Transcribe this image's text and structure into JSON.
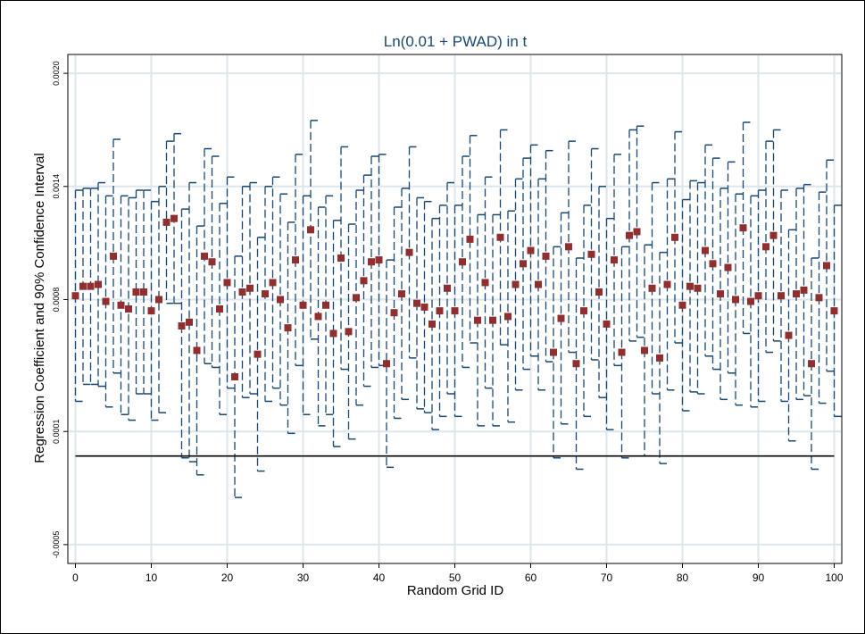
{
  "chart_data": {
    "type": "scatter",
    "title": "Ln(0.01 + PWAD) in t",
    "xlabel": "Random Grid ID",
    "ylabel": "Regression Coefficient and 90% Confidence Interval",
    "xlim": [
      -1,
      101
    ],
    "ylim": [
      -0.0006,
      0.0021
    ],
    "xticks": [
      0,
      10,
      20,
      30,
      40,
      50,
      60,
      70,
      80,
      90,
      100
    ],
    "xtick_labels": [
      "0",
      "10",
      "20",
      "30",
      "40",
      "50",
      "60",
      "70",
      "80",
      "90",
      "100"
    ],
    "yticks": [
      -0.0005,
      0.0001,
      0.0008,
      0.0014,
      0.002
    ],
    "ytick_labels": [
      "-0.0005",
      "0.0001",
      "0.0008",
      "0.0014",
      "0.0020"
    ],
    "grid": true,
    "reference_line_y": -3e-05,
    "colors": {
      "point": "#8f2f2f",
      "ci": "#1a476f",
      "grid": "#dde6ea",
      "title": "#1a476f",
      "reference": "#000000"
    },
    "series": [
      {
        "type": "point",
        "x": [
          0,
          1,
          2,
          3,
          4,
          5,
          6,
          7,
          8,
          9,
          10,
          11,
          12,
          13,
          14,
          15,
          16,
          17,
          18,
          19,
          20,
          21,
          22,
          23,
          24,
          25,
          26,
          27,
          28,
          29,
          30,
          31,
          32,
          33,
          34,
          35,
          36,
          37,
          38,
          39,
          40,
          41,
          42,
          43,
          44,
          45,
          46,
          47,
          48,
          49,
          50,
          51,
          52,
          53,
          54,
          55,
          56,
          57,
          58,
          59,
          60,
          61,
          62,
          63,
          64,
          65,
          66,
          67,
          68,
          69,
          70,
          71,
          72,
          73,
          74,
          75,
          76,
          77,
          78,
          79,
          80,
          81,
          82,
          83,
          84,
          85,
          86,
          87,
          88,
          89,
          90,
          91,
          92,
          93,
          94,
          95,
          96,
          97,
          98,
          99,
          100
        ],
        "y": [
          0.00082,
          0.00087,
          0.00087,
          0.00088,
          0.00079,
          0.00103,
          0.00077,
          0.00075,
          0.00084,
          0.00084,
          0.00074,
          0.0008,
          0.00121,
          0.00123,
          0.00066,
          0.00068,
          0.00053,
          0.00103,
          0.001,
          0.00075,
          0.00089,
          0.00039,
          0.00084,
          0.00086,
          0.00051,
          0.00083,
          0.00089,
          0.0008,
          0.00065,
          0.00101,
          0.00077,
          0.00117,
          0.00071,
          0.00077,
          0.00062,
          0.00102,
          0.00063,
          0.00081,
          0.0009,
          0.001,
          0.00101,
          0.00046,
          0.00073,
          0.00083,
          0.00105,
          0.00078,
          0.00076,
          0.00067,
          0.00074,
          0.00086,
          0.00074,
          0.001,
          0.00112,
          0.00069,
          0.00089,
          0.00069,
          0.00113,
          0.00071,
          0.00088,
          0.00099,
          0.00106,
          0.00088,
          0.00103,
          0.00052,
          0.0007,
          0.00108,
          0.00046,
          0.00074,
          0.00104,
          0.00084,
          0.00067,
          0.00101,
          0.00052,
          0.00114,
          0.00116,
          0.00053,
          0.00086,
          0.00049,
          0.00088,
          0.00113,
          0.00077,
          0.00087,
          0.00086,
          0.00106,
          0.00099,
          0.00083,
          0.00097,
          0.0008,
          0.00118,
          0.00079,
          0.00082,
          0.00108,
          0.00114,
          0.00082,
          0.00061,
          0.00083,
          0.00085,
          0.00046,
          0.00081,
          0.00098,
          0.00074
        ]
      },
      {
        "type": "confidence_interval",
        "x": [
          0,
          1,
          2,
          3,
          4,
          5,
          6,
          7,
          8,
          9,
          10,
          11,
          12,
          13,
          14,
          15,
          16,
          17,
          18,
          19,
          20,
          21,
          22,
          23,
          24,
          25,
          26,
          27,
          28,
          29,
          30,
          31,
          32,
          33,
          34,
          35,
          36,
          37,
          38,
          39,
          40,
          41,
          42,
          43,
          44,
          45,
          46,
          47,
          48,
          49,
          50,
          51,
          52,
          53,
          54,
          55,
          56,
          57,
          58,
          59,
          60,
          61,
          62,
          63,
          64,
          65,
          66,
          67,
          68,
          69,
          70,
          71,
          72,
          73,
          74,
          75,
          76,
          77,
          78,
          79,
          80,
          81,
          82,
          83,
          84,
          85,
          86,
          87,
          88,
          89,
          90,
          91,
          92,
          93,
          94,
          95,
          96,
          97,
          98,
          99,
          100
        ],
        "low": [
          0.00026,
          0.00035,
          0.00035,
          0.00034,
          0.00023,
          0.00041,
          0.00019,
          0.00016,
          0.0003,
          0.0003,
          0.00016,
          0.0002,
          0.00078,
          0.00078,
          -4e-05,
          -6e-05,
          -0.00013,
          0.00046,
          0.00044,
          0.00019,
          0.00033,
          -0.00025,
          0.00028,
          0.0003,
          -0.00011,
          0.00026,
          0.00033,
          0.00024,
          9e-05,
          0.00045,
          0.00019,
          0.00059,
          0.00013,
          0.00019,
          2e-05,
          0.00043,
          6e-05,
          0.00024,
          0.00034,
          0.00044,
          0.00045,
          -9e-05,
          0.00017,
          0.00027,
          0.00049,
          0.00022,
          0.0002,
          0.00011,
          0.00018,
          0.0003,
          0.00018,
          0.00044,
          0.00057,
          0.00013,
          0.00033,
          0.00013,
          0.00056,
          0.00015,
          0.00032,
          0.00043,
          0.0005,
          0.00032,
          0.00047,
          -4e-05,
          0.00014,
          0.00052,
          -0.0001,
          0.00018,
          0.00048,
          0.00028,
          0.00011,
          0.00045,
          -4e-05,
          0.00058,
          0.0006,
          -3e-05,
          0.0003,
          -7e-05,
          0.00032,
          0.00057,
          0.00021,
          0.00031,
          0.0003,
          0.0005,
          0.00043,
          0.00027,
          0.00041,
          0.00024,
          0.00062,
          0.00023,
          0.00026,
          0.00052,
          0.00058,
          0.00026,
          5e-05,
          0.00027,
          0.00029,
          -0.0001,
          0.00025,
          0.00042,
          0.00018
        ],
        "high": [
          0.00138,
          0.00139,
          0.00139,
          0.00142,
          0.00135,
          0.00165,
          0.00135,
          0.00134,
          0.00138,
          0.00138,
          0.00132,
          0.0014,
          0.00164,
          0.00168,
          0.00128,
          0.00142,
          0.00119,
          0.0016,
          0.00156,
          0.00131,
          0.00145,
          0.00103,
          0.0014,
          0.00142,
          0.00113,
          0.0014,
          0.00145,
          0.00136,
          0.00121,
          0.00157,
          0.00135,
          0.00175,
          0.00129,
          0.00135,
          0.00122,
          0.00161,
          0.0012,
          0.00138,
          0.00146,
          0.00156,
          0.00157,
          0.00101,
          0.00129,
          0.00139,
          0.00161,
          0.00134,
          0.00132,
          0.00123,
          0.0013,
          0.00142,
          0.0013,
          0.00156,
          0.00167,
          0.00125,
          0.00145,
          0.00125,
          0.0017,
          0.00127,
          0.00144,
          0.00155,
          0.00162,
          0.00144,
          0.00159,
          0.00108,
          0.00126,
          0.00164,
          0.00102,
          0.0013,
          0.0016,
          0.0014,
          0.00123,
          0.00157,
          0.00108,
          0.0017,
          0.00172,
          0.00109,
          0.00142,
          0.00105,
          0.00144,
          0.00169,
          0.00133,
          0.00143,
          0.00142,
          0.00162,
          0.00155,
          0.00139,
          0.00153,
          0.00136,
          0.00174,
          0.00135,
          0.00138,
          0.00164,
          0.0017,
          0.00138,
          0.00117,
          0.00139,
          0.00141,
          0.00102,
          0.00137,
          0.00154,
          0.0013
        ]
      }
    ]
  }
}
